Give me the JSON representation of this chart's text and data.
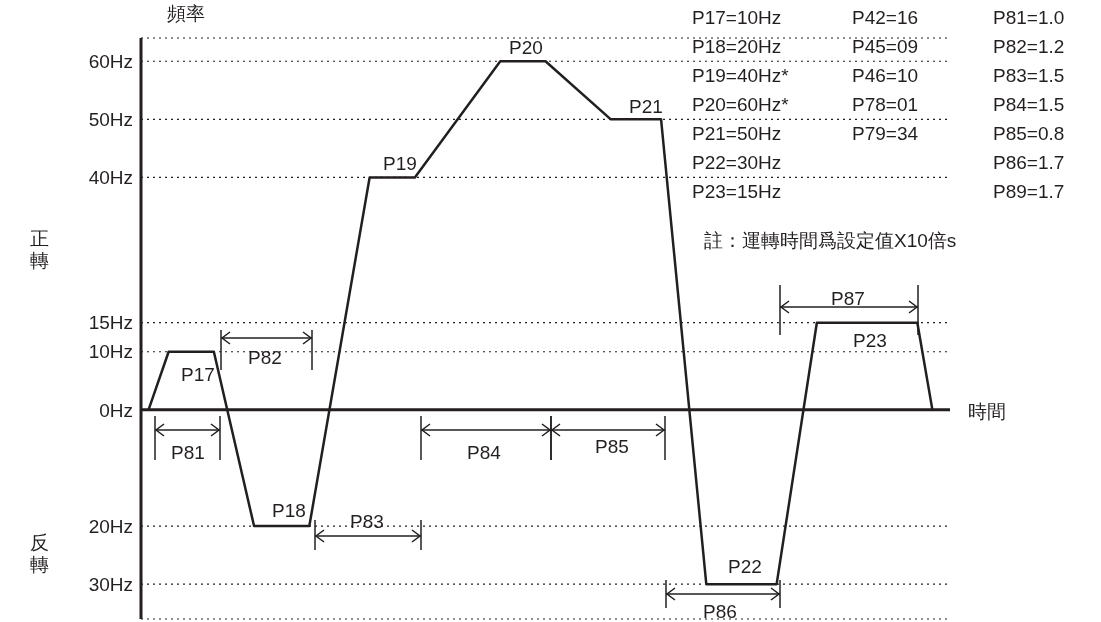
{
  "chart_data": {
    "type": "line",
    "ylabel": "頻率",
    "xlabel": "時間",
    "categories": [
      null,
      null,
      null,
      null,
      null,
      null,
      null,
      null,
      null,
      null,
      null,
      null,
      null,
      null,
      null,
      null,
      null,
      null,
      null,
      null,
      null,
      null,
      null,
      null,
      null,
      null,
      null,
      null,
      null,
      null,
      null,
      null,
      null,
      null,
      null,
      null,
      null,
      null,
      null,
      null,
      null,
      null,
      null,
      null,
      null,
      null,
      null,
      null,
      null,
      null,
      null,
      null,
      null,
      null,
      null,
      null,
      null,
      null,
      null,
      null,
      null,
      null,
      null,
      null,
      null,
      null,
      null,
      null,
      null,
      null,
      null,
      null,
      null,
      null,
      null,
      null,
      null,
      null,
      null,
      null,
      null,
      null,
      null,
      null,
      null,
      null,
      null,
      null,
      null,
      null,
      null,
      null,
      null,
      null,
      null,
      null,
      null,
      null,
      null,
      null,
      null,
      null,
      null,
      null,
      null,
      null,
      null,
      null,
      null,
      null,
      null,
      null,
      null,
      null,
      null,
      null,
      null,
      null,
      null,
      null,
      null,
      null,
      null,
      null,
      null,
      null,
      null,
      null,
      null,
      null,
      null,
      null,
      null,
      null,
      null,
      null,
      null,
      null,
      null,
      null,
      null,
      null,
      null,
      null,
      null,
      null,
      null,
      null,
      null,
      null,
      null,
      null,
      null,
      null,
      null,
      null,
      null,
      null,
      null,
      null,
      null
    ],
    "series": [
      {
        "color": "#231f20",
        "values": [
          null,
          0,
          null,
          null,
          null,
          10,
          null,
          null,
          null,
          null,
          null,
          null,
          null,
          null,
          10,
          null,
          null,
          null,
          null,
          null,
          null,
          null,
          -20,
          null,
          null,
          null,
          null,
          null,
          null,
          null,
          null,
          null,
          null,
          -20,
          null,
          null,
          null,
          null,
          null,
          null,
          null,
          null,
          null,
          null,
          null,
          40,
          null,
          null,
          null,
          null,
          null,
          null,
          null,
          null,
          40,
          null,
          null,
          null,
          null,
          null,
          null,
          null,
          null,
          null,
          null,
          null,
          null,
          null,
          null,
          null,
          null,
          60,
          null,
          null,
          null,
          null,
          null,
          null,
          null,
          null,
          60,
          null,
          null,
          null,
          null,
          null,
          null,
          null,
          null,
          null,
          null,
          null,
          null,
          50,
          null,
          null,
          null,
          null,
          null,
          null,
          null,
          null,
          null,
          50,
          null,
          null,
          null,
          null,
          null,
          null,
          null,
          null,
          -30,
          null,
          null,
          null,
          null,
          null,
          null,
          null,
          null,
          null,
          null,
          null,
          null,
          null,
          -30,
          null,
          null,
          null,
          null,
          null,
          null,
          null,
          15,
          null,
          null,
          null,
          null,
          null,
          null,
          null,
          null,
          null,
          null,
          null,
          null,
          null,
          null,
          null,
          null,
          null,
          null,
          null,
          15,
          null,
          null,
          0,
          null,
          null,
          null
        ]
      }
    ],
    "ylim": [
      -36,
      64
    ],
    "yticks": [
      {
        "value": -30,
        "label": "30Hz"
      },
      {
        "value": -20,
        "label": "20Hz"
      },
      {
        "value": 0,
        "label": "0Hz"
      },
      {
        "value": 10,
        "label": "10Hz"
      },
      {
        "value": 15,
        "label": "15Hz"
      },
      {
        "value": 40,
        "label": "40Hz"
      },
      {
        "value": 50,
        "label": "50Hz"
      },
      {
        "value": 60,
        "label": "60Hz"
      }
    ],
    "tick_labels": "y",
    "grid": "y",
    "line_style": "solid",
    "ref_lines": [
      {
        "axis": "y",
        "value": 0,
        "color": "#231f20"
      }
    ],
    "annotations": [
      "P17",
      "P18",
      "P19",
      "P20",
      "P21",
      "P22",
      "P23",
      "P81",
      "P82",
      "P83",
      "P84",
      "P85",
      "P86",
      "P87",
      "P17=10Hz",
      "P18=20Hz",
      "P19=40Hz*",
      "P20=60Hz*",
      "P21=50Hz",
      "P22=30Hz",
      "P23=15Hz",
      "P42=16",
      "P45=09",
      "P46=10",
      "P78=01",
      "P79=34",
      "P81=1.0",
      "P82=1.2",
      "P83=1.5",
      "P84=1.5",
      "P85=0.8",
      "P86=1.7",
      "P89=1.7",
      "註：運轉時間爲設定值X10倍s",
      "正轉",
      "反轉"
    ]
  }
}
